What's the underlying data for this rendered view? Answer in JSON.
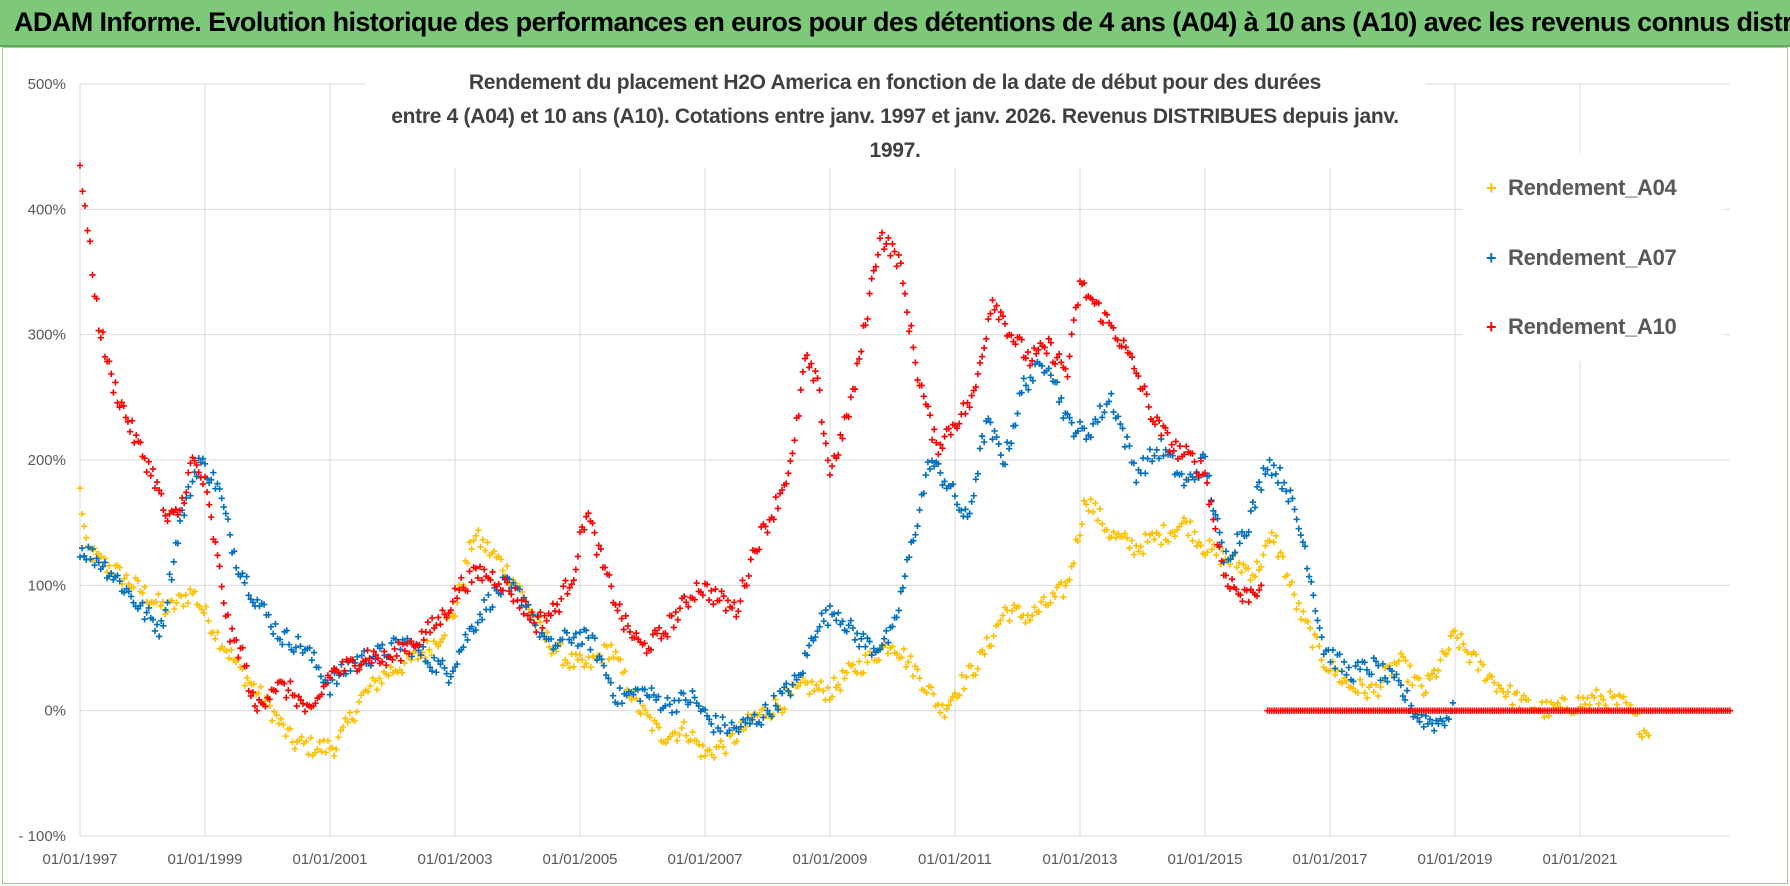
{
  "banner": {
    "title": "ADAM Informe. Evolution historique des performances en euros pour des détentions de 4 ans (A04) à 10 ans (A10) avec les revenus connus distribués"
  },
  "colors": {
    "banner_bg": "#7ec87a",
    "A04": "#ffc000",
    "A07": "#0070c0",
    "A10": "#ff0000",
    "grid": "#d9d9d9"
  },
  "chart_data": {
    "type": "scatter",
    "title_line1": "Rendement du placement H2O America en fonction de la date de début pour des durées",
    "title_line2": "entre 4 (A04) et 10 ans (A10).  Cotations entre janv. 1997 et janv. 2026. Revenus DISTRIBUES  depuis janv. 1997.",
    "xlabel": "",
    "ylabel": "",
    "x_range_years": [
      1997.0,
      2023.4
    ],
    "ylim": [
      -100,
      500
    ],
    "y_ticks": [
      -100,
      0,
      100,
      200,
      300,
      400,
      500
    ],
    "y_tick_labels": [
      "- 100%",
      "0%",
      "100%",
      "200%",
      "300%",
      "400%",
      "500%"
    ],
    "x_tick_years": [
      1997,
      1999,
      2001,
      2003,
      2005,
      2007,
      2009,
      2011,
      2013,
      2015,
      2017,
      2019,
      2021
    ],
    "x_tick_labels": [
      "01/01/1997",
      "01/01/1999",
      "01/01/2001",
      "01/01/2003",
      "01/01/2005",
      "01/01/2007",
      "01/01/2009",
      "01/01/2011",
      "01/01/2013",
      "01/01/2015",
      "01/01/2017",
      "01/01/2019",
      "01/01/2021"
    ],
    "grid": true,
    "legend_position": "top-right",
    "series": [
      {
        "name": "Rendement_A04",
        "key": "A04",
        "x": [
          1997.0,
          1997.1,
          1997.3,
          1997.6,
          1998.0,
          1998.4,
          1998.8,
          1999.2,
          1999.6,
          2000.0,
          2000.4,
          2000.8,
          2001.1,
          2001.5,
          2001.9,
          2002.3,
          2002.7,
          2003.0,
          2003.3,
          2003.7,
          2004.0,
          2004.4,
          2004.8,
          2005.1,
          2005.5,
          2005.9,
          2006.3,
          2006.7,
          2007.0,
          2007.4,
          2007.8,
          2008.2,
          2008.6,
          2009.0,
          2009.3,
          2009.6,
          2010.0,
          2010.4,
          2010.8,
          2011.0,
          2011.4,
          2011.8,
          2012.2,
          2012.6,
          2012.8,
          2013.1,
          2013.5,
          2013.9,
          2014.3,
          2014.7,
          2015.0,
          2015.4,
          2015.8,
          2016.1,
          2016.5,
          2016.9,
          2017.3,
          2017.7,
          2018.1,
          2018.5,
          2018.8,
          2019.0,
          2019.3,
          2019.7,
          2020.1,
          2020.5,
          2020.9,
          2021.3,
          2021.7,
          2022.1
        ],
        "y": [
          175,
          130,
          120,
          110,
          95,
          80,
          95,
          60,
          30,
          5,
          -25,
          -30,
          -28,
          10,
          30,
          40,
          55,
          80,
          140,
          120,
          100,
          60,
          40,
          35,
          50,
          5,
          -20,
          -15,
          -35,
          -25,
          -5,
          5,
          20,
          15,
          30,
          40,
          55,
          30,
          0,
          15,
          40,
          80,
          75,
          90,
          100,
          170,
          140,
          130,
          140,
          150,
          130,
          120,
          110,
          140,
          80,
          40,
          20,
          15,
          40,
          15,
          40,
          60,
          40,
          20,
          5,
          0,
          5,
          10,
          5,
          -20
        ]
      },
      {
        "name": "Rendement_A07",
        "key": "A07",
        "x": [
          1997.0,
          1997.3,
          1997.6,
          1998.0,
          1998.3,
          1998.6,
          1998.9,
          1999.2,
          1999.5,
          1999.8,
          2000.2,
          2000.6,
          2001.0,
          2001.4,
          2001.8,
          2002.2,
          2002.6,
          2002.9,
          2003.2,
          2003.5,
          2003.8,
          2004.1,
          2004.5,
          2004.9,
          2005.2,
          2005.6,
          2006.0,
          2006.4,
          2006.8,
          2007.1,
          2007.5,
          2007.9,
          2008.2,
          2008.5,
          2008.8,
          2009.1,
          2009.4,
          2009.7,
          2010.0,
          2010.3,
          2010.6,
          2010.9,
          2011.2,
          2011.5,
          2011.8,
          2012.1,
          2012.5,
          2012.8,
          2013.1,
          2013.5,
          2013.9,
          2014.3,
          2014.7,
          2015.0,
          2015.3,
          2015.7,
          2016.0,
          2016.3,
          2016.6,
          2016.9,
          2017.3,
          2017.7,
          2018.1,
          2018.4,
          2018.7,
          2019.0
        ],
        "y": [
          130,
          120,
          105,
          80,
          65,
          150,
          200,
          180,
          120,
          90,
          60,
          50,
          20,
          40,
          45,
          55,
          40,
          30,
          60,
          85,
          100,
          90,
          50,
          60,
          55,
          10,
          15,
          5,
          10,
          -10,
          -15,
          -5,
          10,
          25,
          70,
          80,
          60,
          50,
          60,
          130,
          200,
          180,
          150,
          230,
          200,
          260,
          280,
          230,
          220,
          250,
          190,
          210,
          180,
          200,
          120,
          150,
          200,
          180,
          130,
          50,
          30,
          35,
          20,
          -5,
          -10,
          0
        ]
      },
      {
        "name": "Rendement_A10",
        "key": "A10",
        "x": [
          1997.0,
          1997.08,
          1997.2,
          1997.3,
          1997.5,
          1997.7,
          1997.9,
          1998.2,
          1998.4,
          1998.6,
          1998.8,
          1999.0,
          1999.2,
          1999.4,
          1999.6,
          1999.8,
          2000.1,
          2000.4,
          2000.7,
          2001.0,
          2001.3,
          2001.6,
          2001.9,
          2002.2,
          2002.5,
          2002.8,
          2003.1,
          2003.4,
          2003.7,
          2004.0,
          2004.3,
          2004.6,
          2004.9,
          2005.1,
          2005.4,
          2005.7,
          2006.0,
          2006.3,
          2006.6,
          2006.9,
          2007.2,
          2007.5,
          2007.8,
          2008.1,
          2008.4,
          2008.6,
          2008.8,
          2009.0,
          2009.2,
          2009.4,
          2009.6,
          2009.8,
          2010.1,
          2010.4,
          2010.7,
          2011.0,
          2011.3,
          2011.6,
          2011.9,
          2012.2,
          2012.5,
          2012.8,
          2013.0,
          2013.3,
          2013.6,
          2013.9,
          2014.2,
          2014.5,
          2014.8,
          2015.0,
          2015.3,
          2015.6,
          2015.9
        ],
        "y": [
          440,
          400,
          350,
          310,
          265,
          240,
          215,
          185,
          150,
          160,
          200,
          180,
          120,
          60,
          45,
          0,
          20,
          15,
          -5,
          30,
          35,
          45,
          40,
          50,
          60,
          75,
          100,
          110,
          105,
          90,
          70,
          80,
          110,
          160,
          110,
          70,
          50,
          60,
          80,
          100,
          90,
          80,
          130,
          160,
          200,
          280,
          260,
          190,
          220,
          260,
          320,
          380,
          360,
          270,
          210,
          230,
          250,
          330,
          300,
          280,
          290,
          270,
          340,
          320,
          300,
          270,
          230,
          210,
          200,
          190,
          110,
          90,
          100
        ]
      },
      {
        "name": "Rendement_A10_zero",
        "key": "A10",
        "x": [
          2016.0,
          2023.4
        ],
        "y": [
          0,
          0
        ]
      }
    ]
  },
  "legend": {
    "items": [
      {
        "label": "Rendement_A04",
        "marker": "+"
      },
      {
        "label": "Rendement_A07",
        "marker": "+"
      },
      {
        "label": "Rendement_A10",
        "marker": "+"
      }
    ]
  }
}
